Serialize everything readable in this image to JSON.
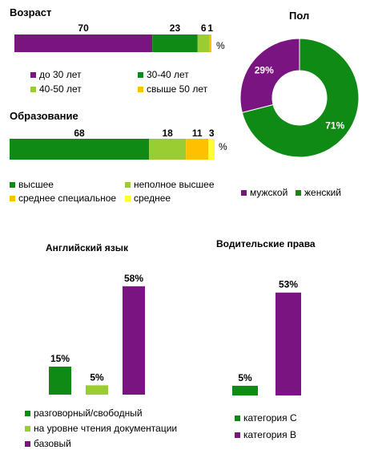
{
  "colors": {
    "purple": "#7a1480",
    "green": "#0f8a14",
    "lightgreen": "#9acd32",
    "orange": "#ffc000",
    "yellow": "#ffff33"
  },
  "chart_data": [
    {
      "type": "bar",
      "orientation": "horizontal-stacked",
      "title": "Возраст",
      "unit_label": "%",
      "series": [
        {
          "name": "до 30 лет",
          "value": 70,
          "color": "#7a1480"
        },
        {
          "name": "30-40 лет",
          "value": 23,
          "color": "#0f8a14"
        },
        {
          "name": "40-50 лет",
          "value": 6,
          "color": "#9acd32"
        },
        {
          "name": "свыше 50 лет",
          "value": 1,
          "color": "#ffc000"
        }
      ]
    },
    {
      "type": "bar",
      "orientation": "horizontal-stacked",
      "title": "Образование",
      "unit_label": "%",
      "series": [
        {
          "name": "высшее",
          "value": 68,
          "color": "#0f8a14"
        },
        {
          "name": "неполное высшее",
          "value": 18,
          "color": "#9acd32"
        },
        {
          "name": "среднее специальное",
          "value": 11,
          "color": "#ffc000"
        },
        {
          "name": "среднее",
          "value": 3,
          "color": "#ffff33"
        }
      ]
    },
    {
      "type": "pie",
      "subtype": "doughnut",
      "title": "Пол",
      "slices": [
        {
          "name": "мужской",
          "value": 29,
          "label": "29%",
          "color": "#7a1480"
        },
        {
          "name": "женский",
          "value": 71,
          "label": "71%",
          "color": "#0f8a14"
        }
      ]
    },
    {
      "type": "bar",
      "title": "Английский язык",
      "ylim": [
        0,
        60
      ],
      "series": [
        {
          "name": "разговорный/свободный",
          "value": 15,
          "label": "15%",
          "color": "#0f8a14"
        },
        {
          "name": "на уровне чтения документации",
          "value": 5,
          "label": "5%",
          "color": "#9acd32"
        },
        {
          "name": "базовый",
          "value": 58,
          "label": "58%",
          "color": "#7a1480"
        }
      ]
    },
    {
      "type": "bar",
      "title": "Водительские права",
      "ylim": [
        0,
        60
      ],
      "series": [
        {
          "name": "категория С",
          "value": 5,
          "label": "5%",
          "color": "#0f8a14"
        },
        {
          "name": "категория В",
          "value": 53,
          "label": "53%",
          "color": "#7a1480"
        }
      ]
    }
  ]
}
